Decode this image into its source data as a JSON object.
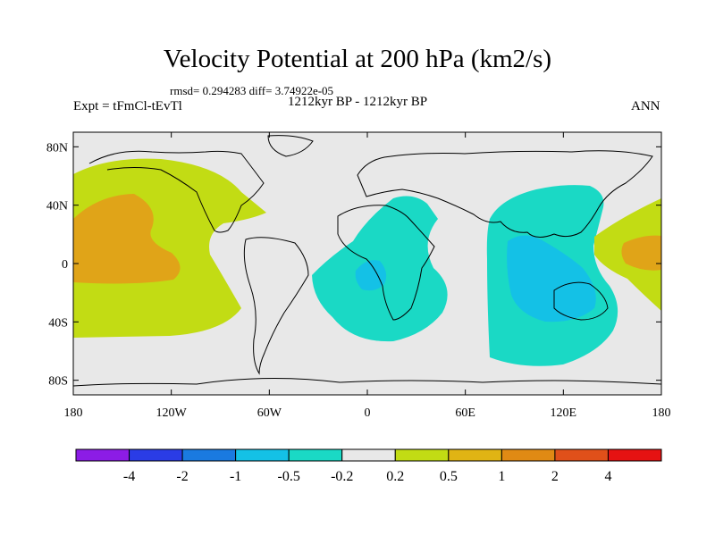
{
  "title": "Velocity Potential at 200 hPa (km2/s)",
  "stats": "rmsd= 0.294283 diff= 3.74922e-05",
  "period": "1212kyr BP - 1212kyr BP",
  "experiment": "Expt = tFmCl-tEvTl",
  "season": "ANN",
  "map": {
    "projection": "cylindrical-equidistant",
    "lon_range": [
      -180,
      180
    ],
    "lat_range": [
      -90,
      90
    ],
    "lon_ticks": [
      {
        "value": -180,
        "label": "180"
      },
      {
        "value": -120,
        "label": "120W"
      },
      {
        "value": -60,
        "label": "60W"
      },
      {
        "value": 0,
        "label": "0"
      },
      {
        "value": 60,
        "label": "60E"
      },
      {
        "value": 120,
        "label": "120E"
      },
      {
        "value": 180,
        "label": "180"
      }
    ],
    "lat_ticks": [
      {
        "value": 80,
        "label": "80N"
      },
      {
        "value": 40,
        "label": "40N"
      },
      {
        "value": 0,
        "label": "0"
      },
      {
        "value": -40,
        "label": "40S"
      },
      {
        "value": -80,
        "label": "80S"
      }
    ],
    "background_color": "#e8e8e8",
    "regions": [
      {
        "name": "pacific-positive-outer",
        "level": "0.2 to 0.5",
        "color": "#c2dc14"
      },
      {
        "name": "pacific-positive-core",
        "level": "0.5 to 1",
        "color": "#e0a418"
      },
      {
        "name": "atlantic-africa-negative-outer",
        "level": "-0.5 to -0.2",
        "color": "#1ad9c5"
      },
      {
        "name": "atlantic-africa-negative-core",
        "level": "-1 to -0.5",
        "color": "#14c1e6"
      },
      {
        "name": "indian-maritime-negative-outer",
        "level": "-0.5 to -0.2",
        "color": "#1ad9c5"
      },
      {
        "name": "indian-maritime-negative-core",
        "level": "-1 to -0.5",
        "color": "#14c1e6"
      },
      {
        "name": "west-pacific-positive-outer",
        "level": "0.2 to 0.5",
        "color": "#c2dc14"
      },
      {
        "name": "west-pacific-positive-core",
        "level": "0.5 to 1",
        "color": "#e0a418"
      }
    ]
  },
  "colorbar": {
    "colors": [
      "#8c1ce6",
      "#2a3ce6",
      "#1a7ae0",
      "#14c1e6",
      "#1ad9c5",
      "#e8e8e8",
      "#c2dc14",
      "#e0b414",
      "#e08a14",
      "#e0501a",
      "#e61212"
    ],
    "labels": [
      "-4",
      "-2",
      "-1",
      "-0.5",
      "-0.2",
      "0.2",
      "0.5",
      "1",
      "2",
      "4"
    ]
  }
}
